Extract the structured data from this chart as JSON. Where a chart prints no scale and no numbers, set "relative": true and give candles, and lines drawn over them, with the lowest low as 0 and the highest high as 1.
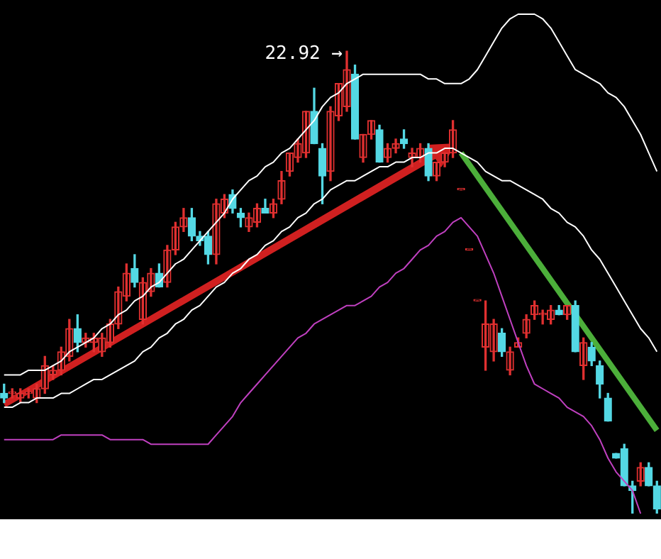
{
  "chart_data": {
    "type": "candlestick",
    "relative": true,
    "categories": [
      null,
      null,
      null,
      null,
      null,
      null,
      null,
      null,
      null,
      null,
      null,
      null,
      null,
      null,
      null,
      null,
      null,
      null,
      null,
      null,
      null,
      null,
      null,
      null,
      null,
      null,
      null,
      null,
      null,
      null,
      null,
      null,
      null,
      null,
      null,
      null,
      null,
      null,
      null,
      null,
      null,
      null,
      null,
      null,
      null,
      null,
      null,
      null,
      null,
      null,
      null,
      null,
      null,
      null,
      null,
      null,
      null,
      null,
      null,
      null,
      null,
      null,
      null,
      null,
      null,
      null,
      null,
      null,
      null,
      null,
      null,
      null,
      null,
      null,
      null,
      null,
      null,
      null,
      null,
      null,
      null
    ],
    "ohlc": [
      [
        0.26,
        0.28,
        0.24,
        0.25
      ],
      [
        0.26,
        0.27,
        0.25,
        0.26
      ],
      [
        0.25,
        0.27,
        0.24,
        0.26
      ],
      [
        0.26,
        0.27,
        0.25,
        0.26
      ],
      [
        0.25,
        0.28,
        0.24,
        0.27
      ],
      [
        0.27,
        0.34,
        0.26,
        0.32
      ],
      [
        0.3,
        0.32,
        0.29,
        0.31
      ],
      [
        0.31,
        0.36,
        0.3,
        0.35
      ],
      [
        0.34,
        0.42,
        0.33,
        0.4
      ],
      [
        0.4,
        0.43,
        0.35,
        0.37
      ],
      [
        0.37,
        0.39,
        0.36,
        0.38
      ],
      [
        0.37,
        0.39,
        0.35,
        0.38
      ],
      [
        0.35,
        0.39,
        0.34,
        0.38
      ],
      [
        0.37,
        0.42,
        0.36,
        0.41
      ],
      [
        0.41,
        0.49,
        0.4,
        0.48
      ],
      [
        0.47,
        0.54,
        0.46,
        0.52
      ],
      [
        0.53,
        0.56,
        0.49,
        0.5
      ],
      [
        0.42,
        0.51,
        0.41,
        0.5
      ],
      [
        0.48,
        0.53,
        0.47,
        0.52
      ],
      [
        0.52,
        0.54,
        0.49,
        0.49
      ],
      [
        0.5,
        0.58,
        0.49,
        0.57
      ],
      [
        0.57,
        0.63,
        0.56,
        0.62
      ],
      [
        0.62,
        0.66,
        0.61,
        0.64
      ],
      [
        0.64,
        0.66,
        0.59,
        0.6
      ],
      [
        0.6,
        0.61,
        0.58,
        0.59
      ],
      [
        0.6,
        0.61,
        0.54,
        0.56
      ],
      [
        0.56,
        0.68,
        0.54,
        0.67
      ],
      [
        0.65,
        0.69,
        0.64,
        0.68
      ],
      [
        0.69,
        0.7,
        0.65,
        0.66
      ],
      [
        0.65,
        0.66,
        0.62,
        0.64
      ],
      [
        0.62,
        0.65,
        0.61,
        0.64
      ],
      [
        0.63,
        0.67,
        0.62,
        0.66
      ],
      [
        0.66,
        0.68,
        0.65,
        0.65
      ],
      [
        0.65,
        0.68,
        0.64,
        0.67
      ],
      [
        0.68,
        0.74,
        0.67,
        0.72
      ],
      [
        0.74,
        0.78,
        0.73,
        0.78
      ],
      [
        0.77,
        0.81,
        0.76,
        0.8
      ],
      [
        0.78,
        0.87,
        0.77,
        0.87
      ],
      [
        0.87,
        0.92,
        0.8,
        0.8
      ],
      [
        0.79,
        0.8,
        0.67,
        0.73
      ],
      [
        0.74,
        0.88,
        0.72,
        0.87
      ],
      [
        0.86,
        0.93,
        0.85,
        0.93
      ],
      [
        0.88,
        1,
        0.87,
        0.96
      ],
      [
        0.95,
        0.97,
        0.81,
        0.81
      ],
      [
        0.77,
        0.82,
        0.76,
        0.82
      ],
      [
        0.82,
        0.85,
        0.81,
        0.85
      ],
      [
        0.83,
        0.84,
        0.76,
        0.76
      ],
      [
        0.77,
        0.8,
        0.76,
        0.79
      ],
      [
        0.79,
        0.81,
        0.78,
        0.8
      ],
      [
        0.81,
        0.83,
        0.79,
        0.8
      ],
      [
        0.77,
        0.79,
        0.75,
        0.78
      ],
      [
        0.77,
        0.8,
        0.76,
        0.79
      ],
      [
        0.79,
        0.8,
        0.72,
        0.73
      ],
      [
        0.73,
        0.76,
        0.72,
        0.76
      ],
      [
        0.76,
        0.78,
        0.75,
        0.78
      ],
      [
        0.78,
        0.85,
        0.77,
        0.83
      ],
      [
        0.7,
        0.7,
        0.7,
        0.7
      ],
      [
        0.57,
        0.57,
        0.57,
        0.57
      ],
      [
        0.46,
        0.46,
        0.46,
        0.46
      ],
      [
        0.36,
        0.46,
        0.31,
        0.41
      ],
      [
        0.35,
        0.42,
        0.33,
        0.41
      ],
      [
        0.39,
        0.4,
        0.34,
        0.35
      ],
      [
        0.31,
        0.36,
        0.3,
        0.35
      ],
      [
        0.36,
        0.38,
        0.36,
        0.37
      ],
      [
        0.39,
        0.43,
        0.38,
        0.42
      ],
      [
        0.43,
        0.46,
        0.42,
        0.45
      ],
      [
        0.43,
        0.44,
        0.41,
        0.43
      ],
      [
        0.42,
        0.45,
        0.41,
        0.44
      ],
      [
        0.44,
        0.45,
        0.43,
        0.43
      ],
      [
        0.43,
        0.45,
        0.42,
        0.45
      ],
      [
        0.45,
        0.46,
        0.35,
        0.35
      ],
      [
        0.32,
        0.38,
        0.29,
        0.37
      ],
      [
        0.36,
        0.37,
        0.32,
        0.33
      ],
      [
        0.32,
        0.33,
        0.25,
        0.28
      ],
      [
        0.25,
        0.26,
        0.2,
        0.2
      ],
      [
        0.13,
        0.13,
        0.12,
        0.12
      ],
      [
        0.14,
        0.15,
        0.06,
        0.06
      ],
      [
        0.06,
        0.07,
        0,
        0.05
      ],
      [
        0.07,
        0.11,
        0.06,
        0.1
      ],
      [
        0.1,
        0.11,
        0.06,
        0.06
      ],
      [
        0.06,
        0.07,
        0,
        0.01
      ]
    ],
    "series": [
      {
        "type": "line",
        "color": "#ffffff",
        "values": [
          0.3,
          0.3,
          0.3,
          0.31,
          0.31,
          0.31,
          0.32,
          0.33,
          0.35,
          0.36,
          0.37,
          0.38,
          0.4,
          0.41,
          0.43,
          0.44,
          0.46,
          0.47,
          0.49,
          0.5,
          0.52,
          0.54,
          0.55,
          0.57,
          0.59,
          0.61,
          0.63,
          0.65,
          0.68,
          0.7,
          0.72,
          0.73,
          0.75,
          0.76,
          0.78,
          0.79,
          0.81,
          0.83,
          0.85,
          0.88,
          0.9,
          0.91,
          0.93,
          0.94,
          0.95,
          0.95,
          0.95,
          0.95,
          0.95,
          0.95,
          0.95,
          0.95,
          0.94,
          0.94,
          0.93,
          0.93,
          0.93,
          0.94,
          0.96,
          0.99,
          1.02,
          1.05,
          1.07,
          1.08,
          1.08,
          1.08,
          1.07,
          1.05,
          1.02,
          0.99,
          0.96,
          0.95,
          0.94,
          0.93,
          0.91,
          0.9,
          0.88,
          0.85,
          0.82,
          0.78,
          0.74
        ]
      },
      {
        "type": "line",
        "color": "#ffffff",
        "values": [
          0.23,
          0.23,
          0.24,
          0.24,
          0.25,
          0.25,
          0.25,
          0.26,
          0.26,
          0.27,
          0.28,
          0.29,
          0.29,
          0.3,
          0.31,
          0.32,
          0.33,
          0.35,
          0.36,
          0.38,
          0.39,
          0.41,
          0.42,
          0.44,
          0.45,
          0.47,
          0.49,
          0.5,
          0.52,
          0.53,
          0.55,
          0.56,
          0.58,
          0.59,
          0.61,
          0.62,
          0.64,
          0.65,
          0.67,
          0.68,
          0.7,
          0.71,
          0.72,
          0.72,
          0.73,
          0.74,
          0.75,
          0.75,
          0.76,
          0.76,
          0.77,
          0.77,
          0.78,
          0.78,
          0.79,
          0.79,
          0.78,
          0.77,
          0.76,
          0.74,
          0.73,
          0.72,
          0.72,
          0.71,
          0.7,
          0.69,
          0.68,
          0.66,
          0.65,
          0.63,
          0.62,
          0.6,
          0.57,
          0.55,
          0.52,
          0.49,
          0.46,
          0.43,
          0.4,
          0.38,
          0.35
        ]
      },
      {
        "type": "line",
        "color": "#4caf3a",
        "values": [
          null,
          null,
          null,
          null,
          null,
          null,
          null,
          null,
          null,
          null,
          null,
          null,
          null,
          null,
          null,
          null,
          null,
          null,
          null,
          null,
          null,
          null,
          null,
          null,
          null,
          null,
          null,
          null,
          null,
          null,
          null,
          null,
          null,
          null,
          null,
          null,
          null,
          null,
          null,
          null,
          null,
          null,
          null,
          null,
          null,
          null,
          null,
          null,
          null,
          null,
          null,
          null,
          null,
          null,
          null,
          null,
          0.78,
          null,
          null,
          null,
          null,
          null,
          null,
          null,
          null,
          null,
          null,
          null,
          null,
          null,
          null,
          null,
          null,
          null,
          null,
          null,
          null,
          null,
          null,
          null,
          0.18
        ]
      },
      {
        "type": "line",
        "color": "#c040c0",
        "values": [
          0.16,
          0.16,
          0.16,
          0.16,
          0.16,
          0.16,
          0.16,
          0.17,
          0.17,
          0.17,
          0.17,
          0.17,
          0.17,
          0.16,
          0.16,
          0.16,
          0.16,
          0.16,
          0.15,
          0.15,
          0.15,
          0.15,
          0.15,
          0.15,
          0.15,
          0.15,
          0.17,
          0.19,
          0.21,
          0.24,
          0.26,
          0.28,
          0.3,
          0.32,
          0.34,
          0.36,
          0.38,
          0.39,
          0.41,
          0.42,
          0.43,
          0.44,
          0.45,
          0.45,
          0.46,
          0.47,
          0.49,
          0.5,
          0.52,
          0.53,
          0.55,
          0.57,
          0.58,
          0.6,
          0.61,
          0.63,
          0.64,
          0.62,
          0.6,
          0.56,
          0.52,
          0.47,
          0.42,
          0.37,
          0.32,
          0.28,
          0.27,
          0.26,
          0.25,
          0.23,
          0.22,
          0.21,
          0.19,
          0.16,
          0.12,
          0.09,
          0.07,
          0.05,
          0.0,
          null,
          null
        ]
      }
    ],
    "annotations": [
      "22.92 →"
    ]
  }
}
